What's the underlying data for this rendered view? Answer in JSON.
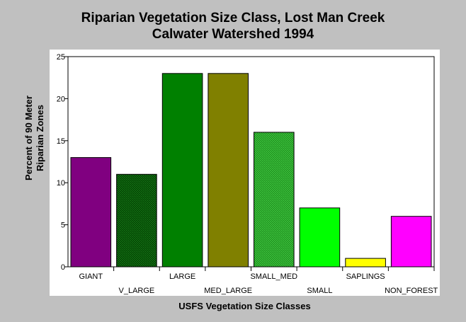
{
  "chart_data": {
    "type": "bar",
    "title_line1": "Riparian Vegetation Size Class, Lost Man Creek",
    "title_line2": "Calwater Watershed 1994",
    "xlabel": "USFS Vegetation Size Classes",
    "ylabel_line1": "Percent of 90 Meter",
    "ylabel_line2": "Riparian Zones",
    "categories": [
      "GIANT",
      "V_LARGE",
      "LARGE",
      "MED_LARGE",
      "SMALL_MED",
      "SMALL",
      "SAPLINGS",
      "NON_FOREST"
    ],
    "values": [
      13,
      11,
      23,
      23,
      16,
      7,
      1,
      6
    ],
    "colors": [
      "#800080",
      "#005000",
      "#008000",
      "#808000",
      "#22a022",
      "#00ff00",
      "#ffff00",
      "#ff00ff"
    ],
    "patterns": [
      false,
      true,
      false,
      false,
      true,
      false,
      false,
      false
    ],
    "ylim": [
      0,
      25
    ],
    "yticks": [
      0,
      5,
      10,
      15,
      20,
      25
    ],
    "grid": false,
    "legend": "none"
  }
}
